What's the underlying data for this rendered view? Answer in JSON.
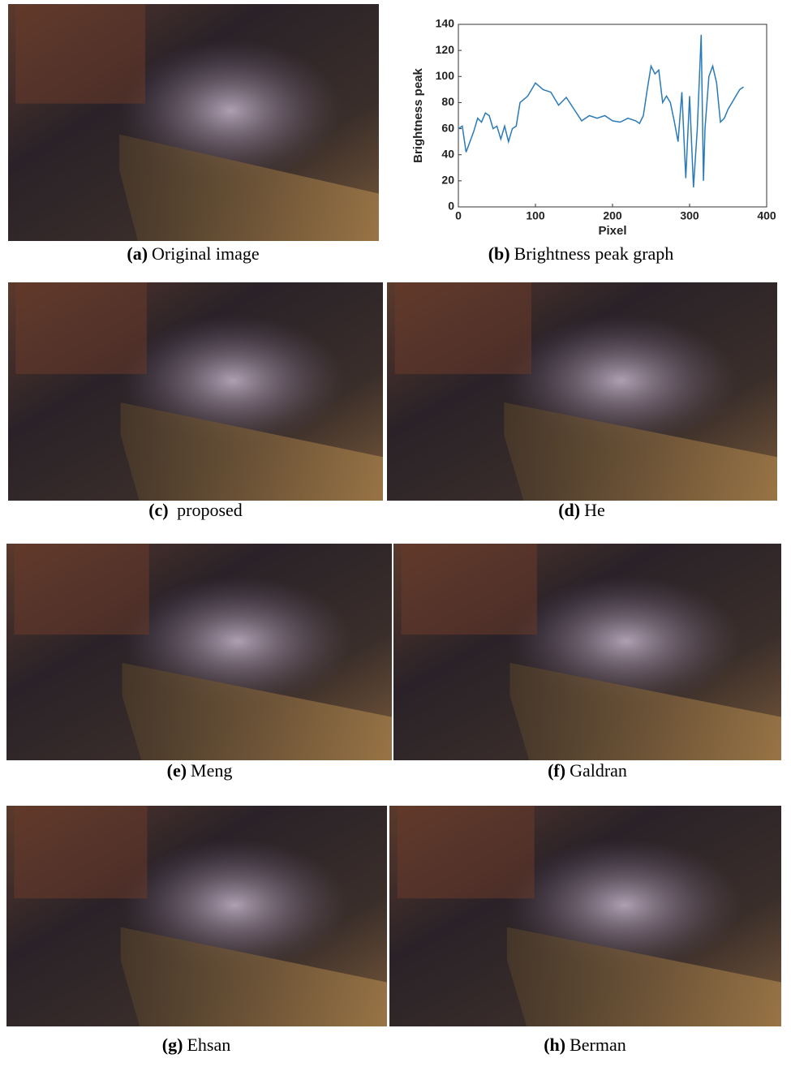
{
  "chart_data": {
    "type": "line",
    "xlabel": "Pixel",
    "ylabel": "Brightness peak",
    "x": [
      0,
      5,
      10,
      15,
      20,
      25,
      30,
      35,
      40,
      45,
      50,
      55,
      60,
      65,
      70,
      75,
      80,
      90,
      100,
      110,
      120,
      130,
      140,
      150,
      160,
      170,
      180,
      190,
      200,
      210,
      220,
      230,
      235,
      240,
      245,
      250,
      255,
      260,
      265,
      270,
      275,
      280,
      285,
      290,
      295,
      300,
      305,
      310,
      315,
      318,
      320,
      325,
      330,
      335,
      340,
      345,
      350,
      355,
      360,
      365,
      370
    ],
    "values": [
      60,
      62,
      42,
      50,
      58,
      68,
      65,
      72,
      70,
      60,
      62,
      52,
      62,
      50,
      60,
      62,
      80,
      85,
      95,
      90,
      88,
      78,
      84,
      75,
      66,
      70,
      68,
      70,
      66,
      65,
      68,
      66,
      64,
      70,
      90,
      108,
      102,
      105,
      80,
      85,
      80,
      66,
      50,
      88,
      22,
      85,
      15,
      60,
      132,
      20,
      60,
      100,
      108,
      95,
      65,
      68,
      75,
      80,
      85,
      90,
      92
    ],
    "color": "#2a7ab8",
    "xlim": [
      0,
      400
    ],
    "xticks": [
      0,
      100,
      200,
      300,
      400
    ],
    "ylim": [
      0,
      140
    ],
    "yticks": [
      0,
      20,
      40,
      60,
      80,
      100,
      120,
      140
    ]
  },
  "panels": [
    {
      "letter": "(a)",
      "caption": "Original image"
    },
    {
      "letter": "(b)",
      "caption": "Brightness peak graph"
    },
    {
      "letter": "(c)",
      "caption": " proposed"
    },
    {
      "letter": "(d)",
      "caption": "He"
    },
    {
      "letter": "(e)",
      "caption": "Meng"
    },
    {
      "letter": "(f)",
      "caption": "Galdran"
    },
    {
      "letter": "(g)",
      "caption": "Ehsan"
    },
    {
      "letter": "(h)",
      "caption": "Berman"
    }
  ]
}
